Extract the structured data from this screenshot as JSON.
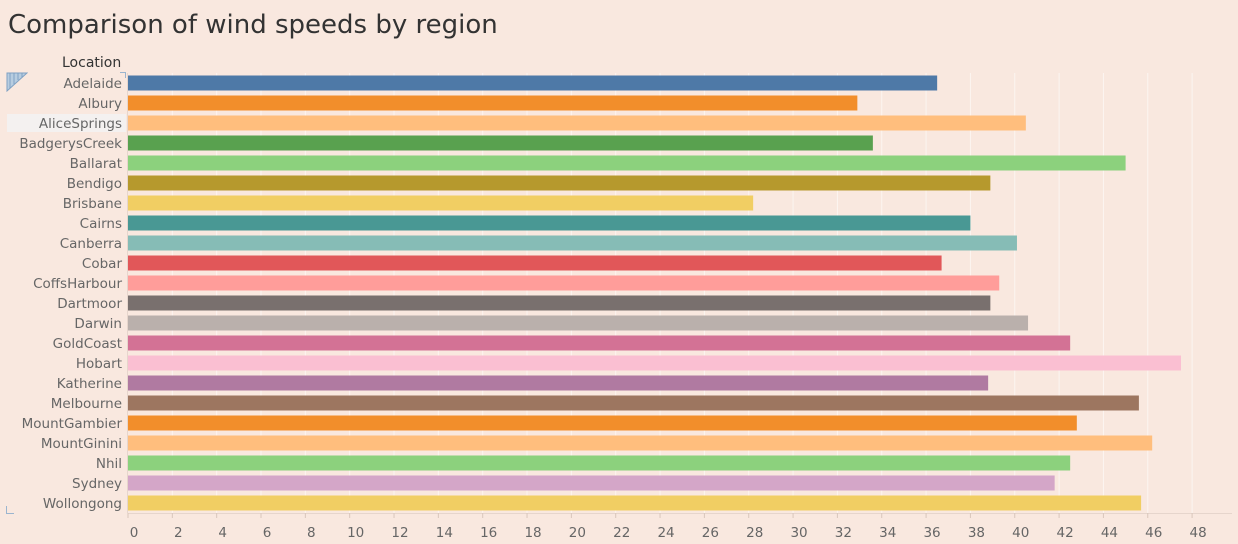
{
  "title": "Comparison of wind speeds by region",
  "field_header": "Location",
  "selected_category": "AliceSprings",
  "chart_data": {
    "type": "bar",
    "orientation": "horizontal",
    "title": "Comparison of wind speeds by region",
    "xlabel": "",
    "ylabel": "Location",
    "xlim": [
      0,
      49.8
    ],
    "xticks": [
      0,
      2,
      4,
      6,
      8,
      10,
      12,
      14,
      16,
      18,
      20,
      22,
      24,
      26,
      28,
      30,
      32,
      34,
      36,
      38,
      40,
      42,
      44,
      46,
      48
    ],
    "grid": true,
    "categories": [
      "Adelaide",
      "Albury",
      "AliceSprings",
      "BadgerysCreek",
      "Ballarat",
      "Bendigo",
      "Brisbane",
      "Cairns",
      "Canberra",
      "Cobar",
      "CoffsHarbour",
      "Dartmoor",
      "Darwin",
      "GoldCoast",
      "Hobart",
      "Katherine",
      "Melbourne",
      "MountGambier",
      "MountGinini",
      "Nhil",
      "Sydney",
      "Wollongong"
    ],
    "values": [
      36.5,
      32.9,
      40.5,
      33.6,
      45.0,
      38.9,
      28.2,
      38.0,
      40.1,
      36.7,
      39.3,
      38.9,
      40.6,
      42.5,
      47.5,
      38.8,
      45.6,
      42.8,
      46.2,
      42.5,
      41.8,
      45.7
    ],
    "colors": [
      "#4e79a7",
      "#f28e2b",
      "#ffbe7d",
      "#59a14f",
      "#8cd17d",
      "#b6992d",
      "#f1ce63",
      "#499894",
      "#86bcb6",
      "#e15759",
      "#ff9d9a",
      "#79706e",
      "#bab0ac",
      "#d37295",
      "#fabfd2",
      "#b07aa1",
      "#9d7660",
      "#f28e2b",
      "#ffbe7d",
      "#8cd17d",
      "#d4a6c8",
      "#f1ce63"
    ]
  }
}
